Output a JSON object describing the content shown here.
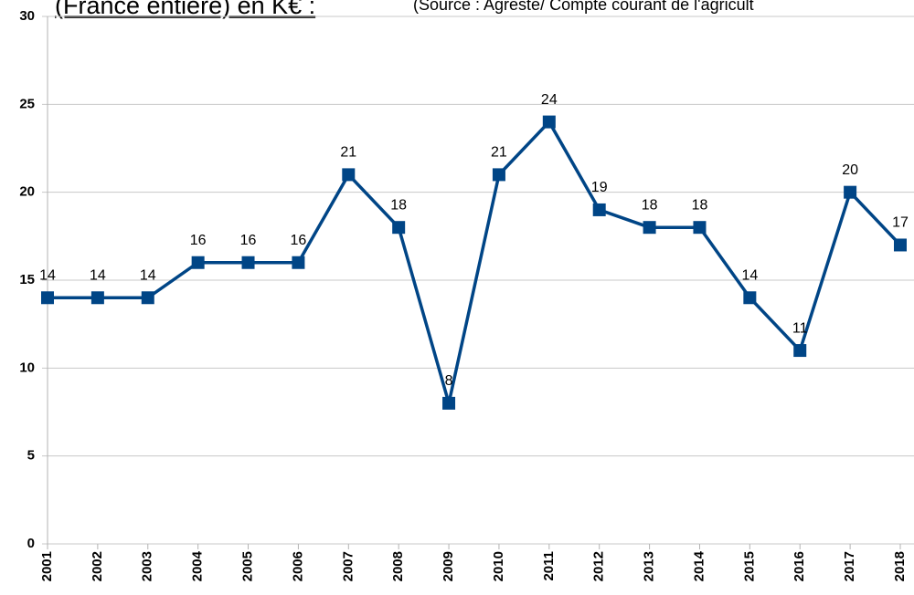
{
  "chart_data": {
    "type": "line",
    "title": "(France entière) en K€ :",
    "subtitle": "(Source : Agreste/ Compte courant de l'agricult",
    "categories": [
      "2001",
      "2002",
      "2003",
      "2004",
      "2005",
      "2006",
      "2007",
      "2008",
      "2009",
      "2010",
      "2011",
      "2012",
      "2013",
      "2014",
      "2015",
      "2016",
      "2017",
      "2018"
    ],
    "series": [
      {
        "name": null,
        "color": "#004586",
        "values": [
          14,
          14,
          14,
          16,
          16,
          16,
          21,
          18,
          8,
          21,
          24,
          19,
          18,
          18,
          14,
          11,
          20,
          17
        ]
      }
    ],
    "ylim": [
      0,
      30
    ],
    "yticks": [
      0,
      5,
      10,
      15,
      20,
      25,
      30
    ],
    "grid": true
  }
}
